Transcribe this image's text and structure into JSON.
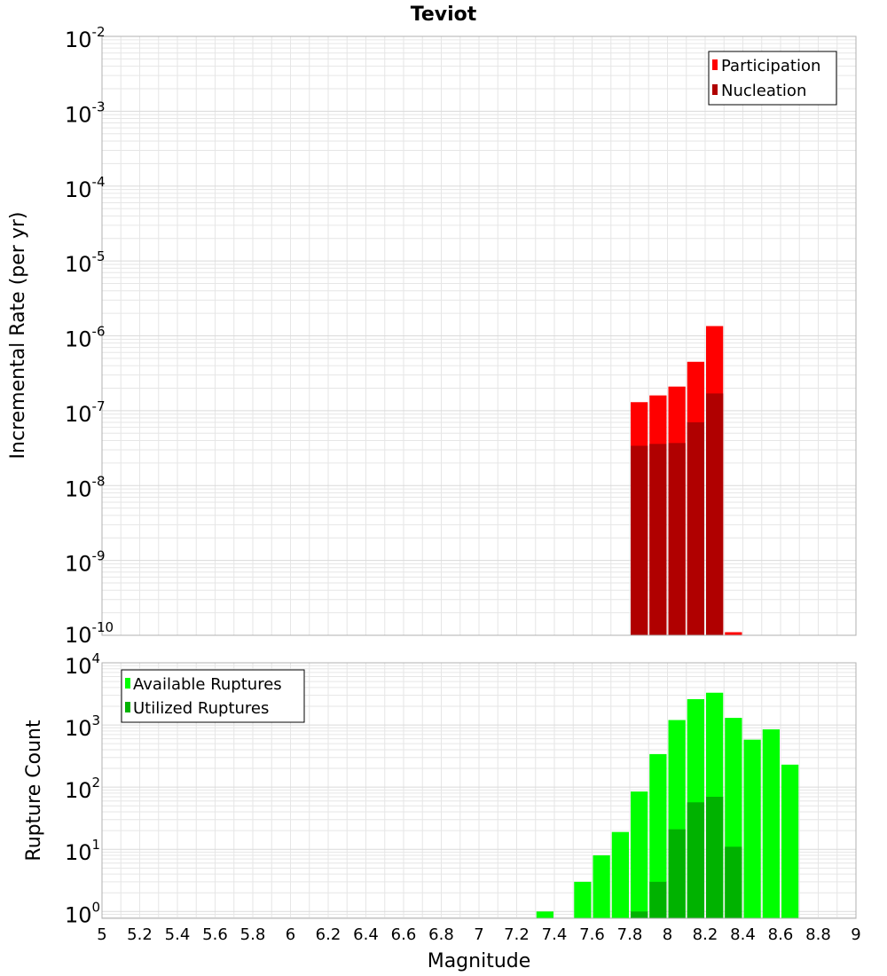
{
  "title": "Teviot",
  "colors": {
    "participation": "#ff0000",
    "nucleation": "#b00000",
    "available": "#00ff00",
    "utilized": "#00b200",
    "grid": "#e6e6e6",
    "frame": "#b0b0b0"
  },
  "chart_data": [
    {
      "type": "bar",
      "name": "rate-panel",
      "ylabel": "Incremental Rate (per yr)",
      "yscale": "log",
      "ylim_exp": [
        -10,
        -2
      ],
      "xlim": [
        5,
        9
      ],
      "bar_width": 0.1,
      "legend_position": "top-right",
      "series": [
        {
          "name": "Participation",
          "color_key": "participation",
          "x": [
            7.85,
            7.95,
            8.05,
            8.15,
            8.25,
            8.35
          ],
          "values": [
            1.3e-07,
            1.6e-07,
            2.1e-07,
            4.5e-07,
            1.35e-06,
            1.1e-10
          ]
        },
        {
          "name": "Nucleation",
          "color_key": "nucleation",
          "x": [
            7.85,
            7.95,
            8.05,
            8.15,
            8.25
          ],
          "values": [
            3.4e-08,
            3.6e-08,
            3.7e-08,
            7e-08,
            1.7e-07
          ]
        }
      ],
      "y_ticks": [
        {
          "base": "10",
          "exp": "-2"
        },
        {
          "base": "10",
          "exp": "-3"
        },
        {
          "base": "10",
          "exp": "-4"
        },
        {
          "base": "10",
          "exp": "-5"
        },
        {
          "base": "10",
          "exp": "-6"
        },
        {
          "base": "10",
          "exp": "-7"
        },
        {
          "base": "10",
          "exp": "-8"
        },
        {
          "base": "10",
          "exp": "-9"
        },
        {
          "base": "10",
          "exp": "-10"
        }
      ]
    },
    {
      "type": "bar",
      "name": "count-panel",
      "xlabel": "Magnitude",
      "ylabel": "Rupture Count",
      "yscale": "log",
      "ylim_exp": [
        -0.11,
        4
      ],
      "xlim": [
        5,
        9
      ],
      "bar_width": 0.1,
      "legend_position": "top-left",
      "series": [
        {
          "name": "Available Ruptures",
          "color_key": "available",
          "x": [
            7.35,
            7.55,
            7.65,
            7.75,
            7.85,
            7.95,
            8.05,
            8.15,
            8.25,
            8.35,
            8.45,
            8.55,
            8.65
          ],
          "values": [
            1,
            3,
            8,
            19,
            85,
            340,
            1200,
            2600,
            3300,
            1300,
            580,
            850,
            230
          ]
        },
        {
          "name": "Utilized Ruptures",
          "color_key": "utilized",
          "x": [
            7.85,
            7.95,
            8.05,
            8.15,
            8.25,
            8.35
          ],
          "values": [
            1,
            3,
            21,
            57,
            70,
            11
          ]
        }
      ],
      "y_ticks": [
        {
          "base": "10",
          "exp": "4"
        },
        {
          "base": "10",
          "exp": "3"
        },
        {
          "base": "10",
          "exp": "2"
        },
        {
          "base": "10",
          "exp": "1"
        },
        {
          "base": "10",
          "exp": "0"
        }
      ],
      "x_ticks": [
        "5",
        "5.2",
        "5.4",
        "5.6",
        "5.8",
        "6",
        "6.2",
        "6.4",
        "6.6",
        "6.8",
        "7",
        "7.2",
        "7.4",
        "7.6",
        "7.8",
        "8",
        "8.2",
        "8.4",
        "8.6",
        "8.8",
        "9"
      ]
    }
  ]
}
